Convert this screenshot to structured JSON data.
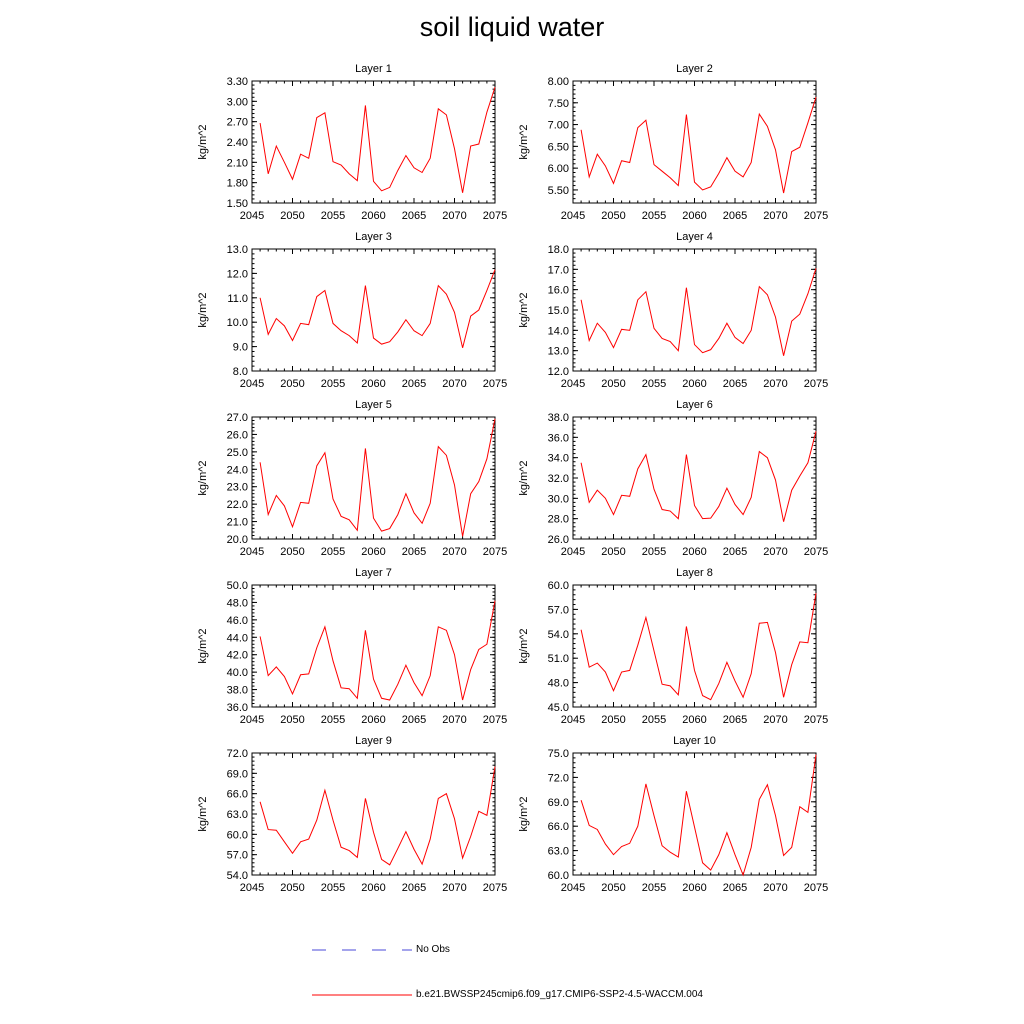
{
  "title": "soil liquid water",
  "legend": {
    "items": [
      {
        "label": "No Obs",
        "color": "#4a4ad8",
        "style": "dashed"
      },
      {
        "label": "b.e21.BWSSP245cmip6.f09_g17.CMIP6-SSP2-4.5-WACCM.004",
        "color": "#ff0000",
        "style": "solid"
      }
    ]
  },
  "chart_data": [
    {
      "type": "line",
      "title": "Layer 1",
      "ylabel": "kg/m^2",
      "xlim": [
        2045,
        2075
      ],
      "ylim": [
        1.5,
        3.3
      ],
      "yticks": [
        "1.50",
        "1.80",
        "2.10",
        "2.40",
        "2.70",
        "3.00",
        "3.30"
      ],
      "xticks": [
        "2045",
        "2050",
        "2055",
        "2060",
        "2065",
        "2070",
        "2075"
      ],
      "x": [
        2046,
        2047,
        2048,
        2049,
        2050,
        2051,
        2052,
        2053,
        2054,
        2055,
        2056,
        2057,
        2058,
        2059,
        2060,
        2061,
        2062,
        2063,
        2064,
        2065,
        2066,
        2067,
        2068,
        2069,
        2070,
        2071,
        2072,
        2073,
        2074,
        2075
      ],
      "series": [
        {
          "values": [
            2.68,
            1.93,
            2.34,
            2.1,
            1.85,
            2.22,
            2.16,
            2.76,
            2.83,
            2.11,
            2.06,
            1.93,
            1.83,
            2.94,
            1.82,
            1.68,
            1.73,
            1.98,
            2.2,
            2.02,
            1.95,
            2.16,
            2.89,
            2.8,
            2.3,
            1.65,
            2.34,
            2.37,
            2.84,
            3.21
          ],
          "color": "#ff0000"
        }
      ]
    },
    {
      "type": "line",
      "title": "Layer 2",
      "ylabel": "kg/m^2",
      "xlim": [
        2045,
        2075
      ],
      "ylim": [
        5.2,
        8.0
      ],
      "yticks": [
        "5.50",
        "6.00",
        "6.50",
        "7.00",
        "7.50",
        "8.00"
      ],
      "xticks": [
        "2045",
        "2050",
        "2055",
        "2060",
        "2065",
        "2070",
        "2075"
      ],
      "x": [
        2046,
        2047,
        2048,
        2049,
        2050,
        2051,
        2052,
        2053,
        2054,
        2055,
        2056,
        2057,
        2058,
        2059,
        2060,
        2061,
        2062,
        2063,
        2064,
        2065,
        2066,
        2067,
        2068,
        2069,
        2070,
        2071,
        2072,
        2073,
        2074,
        2075
      ],
      "series": [
        {
          "values": [
            6.88,
            5.8,
            6.32,
            6.05,
            5.65,
            6.17,
            6.13,
            6.93,
            7.1,
            6.08,
            5.93,
            5.78,
            5.6,
            7.23,
            5.68,
            5.5,
            5.57,
            5.88,
            6.24,
            5.93,
            5.8,
            6.13,
            7.24,
            6.96,
            6.42,
            5.43,
            6.38,
            6.48,
            7.04,
            7.63
          ],
          "color": "#ff0000"
        }
      ]
    },
    {
      "type": "line",
      "title": "Layer 3",
      "ylabel": "kg/m^2",
      "xlim": [
        2045,
        2075
      ],
      "ylim": [
        8.0,
        13.0
      ],
      "yticks": [
        "8.0",
        "9.0",
        "10.0",
        "11.0",
        "12.0",
        "13.0"
      ],
      "xticks": [
        "2045",
        "2050",
        "2055",
        "2060",
        "2065",
        "2070",
        "2075"
      ],
      "x": [
        2046,
        2047,
        2048,
        2049,
        2050,
        2051,
        2052,
        2053,
        2054,
        2055,
        2056,
        2057,
        2058,
        2059,
        2060,
        2061,
        2062,
        2063,
        2064,
        2065,
        2066,
        2067,
        2068,
        2069,
        2070,
        2071,
        2072,
        2073,
        2074,
        2075
      ],
      "series": [
        {
          "values": [
            11.0,
            9.5,
            10.15,
            9.85,
            9.25,
            9.95,
            9.9,
            11.05,
            11.3,
            9.95,
            9.65,
            9.45,
            9.15,
            11.5,
            9.35,
            9.1,
            9.2,
            9.6,
            10.1,
            9.65,
            9.45,
            9.95,
            11.5,
            11.15,
            10.4,
            8.95,
            10.25,
            10.5,
            11.3,
            12.15
          ],
          "color": "#ff0000"
        }
      ]
    },
    {
      "type": "line",
      "title": "Layer 4",
      "ylabel": "kg/m^2",
      "xlim": [
        2045,
        2075
      ],
      "ylim": [
        12.0,
        18.0
      ],
      "yticks": [
        "12.0",
        "13.0",
        "14.0",
        "15.0",
        "16.0",
        "17.0",
        "18.0"
      ],
      "xticks": [
        "2045",
        "2050",
        "2055",
        "2060",
        "2065",
        "2070",
        "2075"
      ],
      "x": [
        2046,
        2047,
        2048,
        2049,
        2050,
        2051,
        2052,
        2053,
        2054,
        2055,
        2056,
        2057,
        2058,
        2059,
        2060,
        2061,
        2062,
        2063,
        2064,
        2065,
        2066,
        2067,
        2068,
        2069,
        2070,
        2071,
        2072,
        2073,
        2074,
        2075
      ],
      "series": [
        {
          "values": [
            15.5,
            13.5,
            14.35,
            13.9,
            13.15,
            14.05,
            14.0,
            15.5,
            15.9,
            14.1,
            13.6,
            13.45,
            13.0,
            16.1,
            13.3,
            12.9,
            13.05,
            13.6,
            14.35,
            13.65,
            13.35,
            14.0,
            16.15,
            15.75,
            14.65,
            12.75,
            14.45,
            14.8,
            15.8,
            17.05
          ],
          "color": "#ff0000"
        }
      ]
    },
    {
      "type": "line",
      "title": "Layer 5",
      "ylabel": "kg/m^2",
      "xlim": [
        2045,
        2075
      ],
      "ylim": [
        20.0,
        27.0
      ],
      "yticks": [
        "20.0",
        "21.0",
        "22.0",
        "23.0",
        "24.0",
        "25.0",
        "26.0",
        "27.0"
      ],
      "xticks": [
        "2045",
        "2050",
        "2055",
        "2060",
        "2065",
        "2070",
        "2075"
      ],
      "x": [
        2046,
        2047,
        2048,
        2049,
        2050,
        2051,
        2052,
        2053,
        2054,
        2055,
        2056,
        2057,
        2058,
        2059,
        2060,
        2061,
        2062,
        2063,
        2064,
        2065,
        2066,
        2067,
        2068,
        2069,
        2070,
        2071,
        2072,
        2073,
        2074,
        2075
      ],
      "series": [
        {
          "values": [
            24.4,
            21.4,
            22.5,
            21.9,
            20.7,
            22.1,
            22.05,
            24.2,
            24.95,
            22.3,
            21.3,
            21.1,
            20.5,
            25.2,
            21.2,
            20.45,
            20.6,
            21.4,
            22.6,
            21.5,
            20.9,
            22.05,
            25.3,
            24.8,
            23.1,
            20.15,
            22.6,
            23.3,
            24.6,
            26.9
          ],
          "color": "#ff0000"
        }
      ]
    },
    {
      "type": "line",
      "title": "Layer 6",
      "ylabel": "kg/m^2",
      "xlim": [
        2045,
        2075
      ],
      "ylim": [
        26.0,
        38.0
      ],
      "yticks": [
        "26.0",
        "28.0",
        "30.0",
        "32.0",
        "34.0",
        "36.0",
        "38.0"
      ],
      "xticks": [
        "2045",
        "2050",
        "2055",
        "2060",
        "2065",
        "2070",
        "2075"
      ],
      "x": [
        2046,
        2047,
        2048,
        2049,
        2050,
        2051,
        2052,
        2053,
        2054,
        2055,
        2056,
        2057,
        2058,
        2059,
        2060,
        2061,
        2062,
        2063,
        2064,
        2065,
        2066,
        2067,
        2068,
        2069,
        2070,
        2071,
        2072,
        2073,
        2074,
        2075
      ],
      "series": [
        {
          "values": [
            33.5,
            29.6,
            30.8,
            30.0,
            28.4,
            30.3,
            30.2,
            32.9,
            34.3,
            30.9,
            28.9,
            28.75,
            28.0,
            34.3,
            29.3,
            28.0,
            28.05,
            29.2,
            31.0,
            29.4,
            28.4,
            30.1,
            34.6,
            34.0,
            31.8,
            27.7,
            30.8,
            32.2,
            33.5,
            36.6
          ],
          "color": "#ff0000"
        }
      ]
    },
    {
      "type": "line",
      "title": "Layer 7",
      "ylabel": "kg/m^2",
      "xlim": [
        2045,
        2075
      ],
      "ylim": [
        36.0,
        50.0
      ],
      "yticks": [
        "36.0",
        "38.0",
        "40.0",
        "42.0",
        "44.0",
        "46.0",
        "48.0",
        "50.0"
      ],
      "xticks": [
        "2045",
        "2050",
        "2055",
        "2060",
        "2065",
        "2070",
        "2075"
      ],
      "x": [
        2046,
        2047,
        2048,
        2049,
        2050,
        2051,
        2052,
        2053,
        2054,
        2055,
        2056,
        2057,
        2058,
        2059,
        2060,
        2061,
        2062,
        2063,
        2064,
        2065,
        2066,
        2067,
        2068,
        2069,
        2070,
        2071,
        2072,
        2073,
        2074,
        2075
      ],
      "series": [
        {
          "values": [
            44.1,
            39.6,
            40.6,
            39.5,
            37.5,
            39.7,
            39.8,
            42.8,
            45.2,
            41.3,
            38.2,
            38.1,
            37.0,
            44.8,
            39.2,
            37.0,
            36.8,
            38.6,
            40.8,
            38.8,
            37.3,
            39.6,
            45.2,
            44.8,
            42.0,
            36.8,
            40.3,
            42.6,
            43.2,
            48.2
          ],
          "color": "#ff0000"
        }
      ]
    },
    {
      "type": "line",
      "title": "Layer 8",
      "ylabel": "kg/m^2",
      "xlim": [
        2045,
        2075
      ],
      "ylim": [
        45.0,
        60.0
      ],
      "yticks": [
        "45.0",
        "48.0",
        "51.0",
        "54.0",
        "57.0",
        "60.0"
      ],
      "xticks": [
        "2045",
        "2050",
        "2055",
        "2060",
        "2065",
        "2070",
        "2075"
      ],
      "x": [
        2046,
        2047,
        2048,
        2049,
        2050,
        2051,
        2052,
        2053,
        2054,
        2055,
        2056,
        2057,
        2058,
        2059,
        2060,
        2061,
        2062,
        2063,
        2064,
        2065,
        2066,
        2067,
        2068,
        2069,
        2070,
        2071,
        2072,
        2073,
        2074,
        2075
      ],
      "series": [
        {
          "values": [
            54.5,
            49.9,
            50.4,
            49.3,
            47.0,
            49.3,
            49.5,
            52.6,
            56.0,
            51.9,
            47.8,
            47.6,
            46.5,
            54.9,
            49.5,
            46.4,
            45.9,
            47.9,
            50.5,
            48.2,
            46.2,
            49.1,
            55.3,
            55.4,
            51.7,
            46.2,
            50.2,
            53.0,
            52.9,
            59.0
          ],
          "color": "#ff0000"
        }
      ]
    },
    {
      "type": "line",
      "title": "Layer 9",
      "ylabel": "kg/m^2",
      "xlim": [
        2045,
        2075
      ],
      "ylim": [
        54.0,
        72.0
      ],
      "yticks": [
        "54.0",
        "57.0",
        "60.0",
        "63.0",
        "66.0",
        "69.0",
        "72.0"
      ],
      "xticks": [
        "2045",
        "2050",
        "2055",
        "2060",
        "2065",
        "2070",
        "2075"
      ],
      "x": [
        2046,
        2047,
        2048,
        2049,
        2050,
        2051,
        2052,
        2053,
        2054,
        2055,
        2056,
        2057,
        2058,
        2059,
        2060,
        2061,
        2062,
        2063,
        2064,
        2065,
        2066,
        2067,
        2068,
        2069,
        2070,
        2071,
        2072,
        2073,
        2074,
        2075
      ],
      "series": [
        {
          "values": [
            64.8,
            60.7,
            60.6,
            58.9,
            57.2,
            58.9,
            59.3,
            62.1,
            66.5,
            62.1,
            58.1,
            57.6,
            56.6,
            65.3,
            60.3,
            56.3,
            55.5,
            57.9,
            60.4,
            57.8,
            55.6,
            59.3,
            65.3,
            66.0,
            62.3,
            56.5,
            59.7,
            63.4,
            62.8,
            70.0
          ],
          "color": "#ff0000"
        }
      ]
    },
    {
      "type": "line",
      "title": "Layer 10",
      "ylabel": "kg/m^2",
      "xlim": [
        2045,
        2075
      ],
      "ylim": [
        60.0,
        75.0
      ],
      "yticks": [
        "60.0",
        "63.0",
        "66.0",
        "69.0",
        "72.0",
        "75.0"
      ],
      "xticks": [
        "2045",
        "2050",
        "2055",
        "2060",
        "2065",
        "2070",
        "2075"
      ],
      "x": [
        2046,
        2047,
        2048,
        2049,
        2050,
        2051,
        2052,
        2053,
        2054,
        2055,
        2056,
        2057,
        2058,
        2059,
        2060,
        2061,
        2062,
        2063,
        2064,
        2065,
        2066,
        2067,
        2068,
        2069,
        2070,
        2071,
        2072,
        2073,
        2074,
        2075
      ],
      "series": [
        {
          "values": [
            69.2,
            66.1,
            65.6,
            63.8,
            62.5,
            63.5,
            63.9,
            66.0,
            71.2,
            67.3,
            63.6,
            62.8,
            62.2,
            70.3,
            65.9,
            61.5,
            60.6,
            62.5,
            65.2,
            62.5,
            60.0,
            63.4,
            69.3,
            71.1,
            67.3,
            62.4,
            63.4,
            68.4,
            67.7,
            74.8
          ],
          "color": "#ff0000"
        }
      ]
    }
  ]
}
